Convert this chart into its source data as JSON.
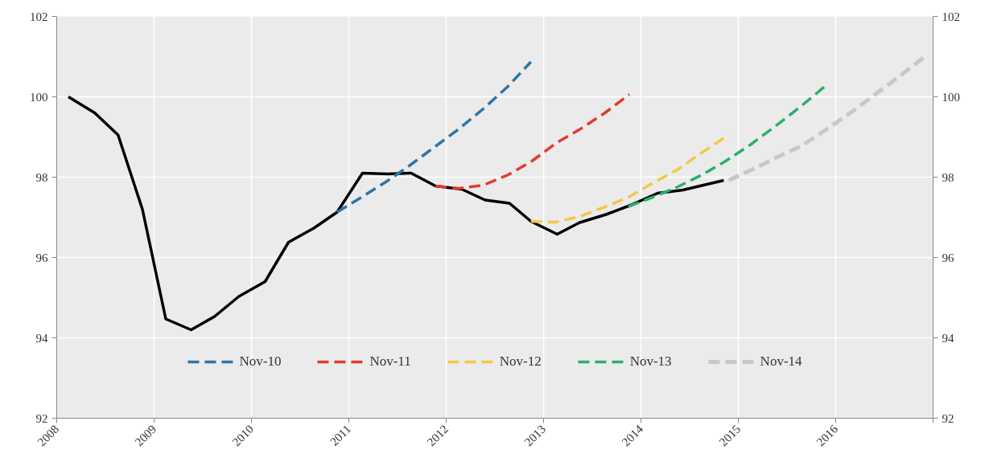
{
  "chart_data": {
    "type": "line",
    "xlim": [
      2008,
      2017
    ],
    "xticks": [
      2008,
      2009,
      2010,
      2011,
      2012,
      2013,
      2014,
      2015,
      2016,
      {
        "value": 2017,
        "label": null
      }
    ],
    "ylim": [
      92,
      102
    ],
    "yticks": [
      92,
      94,
      96,
      98,
      100,
      102
    ],
    "y2lim": [
      92,
      102
    ],
    "y2ticks": [
      92,
      94,
      96,
      98,
      100,
      102
    ],
    "grid": true,
    "legend": "bottom",
    "series": [
      {
        "color": "#000000",
        "line_style": "solid",
        "x": [
          2008.12,
          2008.39,
          2008.63,
          2008.88,
          2009.12,
          2009.38,
          2009.62,
          2009.87,
          2010.14,
          2010.38,
          2010.64,
          2010.88,
          2011.14,
          2011.4,
          2011.64,
          2011.89,
          2012.16,
          2012.4,
          2012.65,
          2012.87,
          2013.14,
          2013.37,
          2013.64,
          2013.9,
          2014.17,
          2014.43,
          2014.85
        ],
        "values": [
          100.0,
          99.6,
          99.05,
          97.2,
          94.47,
          94.2,
          94.53,
          95.03,
          95.4,
          96.38,
          96.73,
          97.13,
          98.1,
          98.08,
          98.1,
          97.78,
          97.7,
          97.43,
          97.35,
          96.9,
          96.58,
          96.87,
          97.07,
          97.31,
          97.6,
          97.68,
          97.92
        ]
      },
      {
        "name": "Nov-10",
        "color": "#2e75a8",
        "line_style": "dashed",
        "x": [
          2010.88,
          2011.13,
          2011.38,
          2011.63,
          2011.88,
          2012.13,
          2012.38,
          2012.63,
          2012.87
        ],
        "values": [
          97.13,
          97.5,
          97.88,
          98.3,
          98.75,
          99.2,
          99.7,
          100.25,
          100.87
        ]
      },
      {
        "name": "Nov-11",
        "color": "#e03c31",
        "line_style": "dashed",
        "x": [
          2011.89,
          2012.13,
          2012.38,
          2012.63,
          2012.88,
          2013.13,
          2013.38,
          2013.63,
          2013.88
        ],
        "values": [
          97.78,
          97.72,
          97.8,
          98.05,
          98.4,
          98.85,
          99.2,
          99.6,
          100.06
        ]
      },
      {
        "name": "Nov-12",
        "color": "#f2c84b",
        "line_style": "dashed",
        "x": [
          2012.87,
          2013.12,
          2013.37,
          2013.62,
          2013.87,
          2014.12,
          2014.37,
          2014.62,
          2014.9
        ],
        "values": [
          96.9,
          96.88,
          97.02,
          97.25,
          97.5,
          97.85,
          98.18,
          98.6,
          99.05
        ]
      },
      {
        "name": "Nov-13",
        "color": "#2bb06a",
        "line_style": "dashed",
        "x": [
          2013.87,
          2014.12,
          2014.37,
          2014.62,
          2014.87,
          2015.12,
          2015.37,
          2015.62,
          2015.89
        ],
        "values": [
          97.27,
          97.5,
          97.75,
          98.05,
          98.4,
          98.8,
          99.25,
          99.72,
          100.26
        ]
      },
      {
        "name": "Nov-14",
        "color": "#c8c8c8",
        "line_style": "dashed",
        "x": [
          2014.9,
          2015.15,
          2015.4,
          2015.65,
          2015.9,
          2016.15,
          2016.4,
          2016.65,
          2016.91
        ],
        "values": [
          97.92,
          98.2,
          98.5,
          98.78,
          99.18,
          99.6,
          100.05,
          100.5,
          100.99
        ]
      }
    ]
  }
}
